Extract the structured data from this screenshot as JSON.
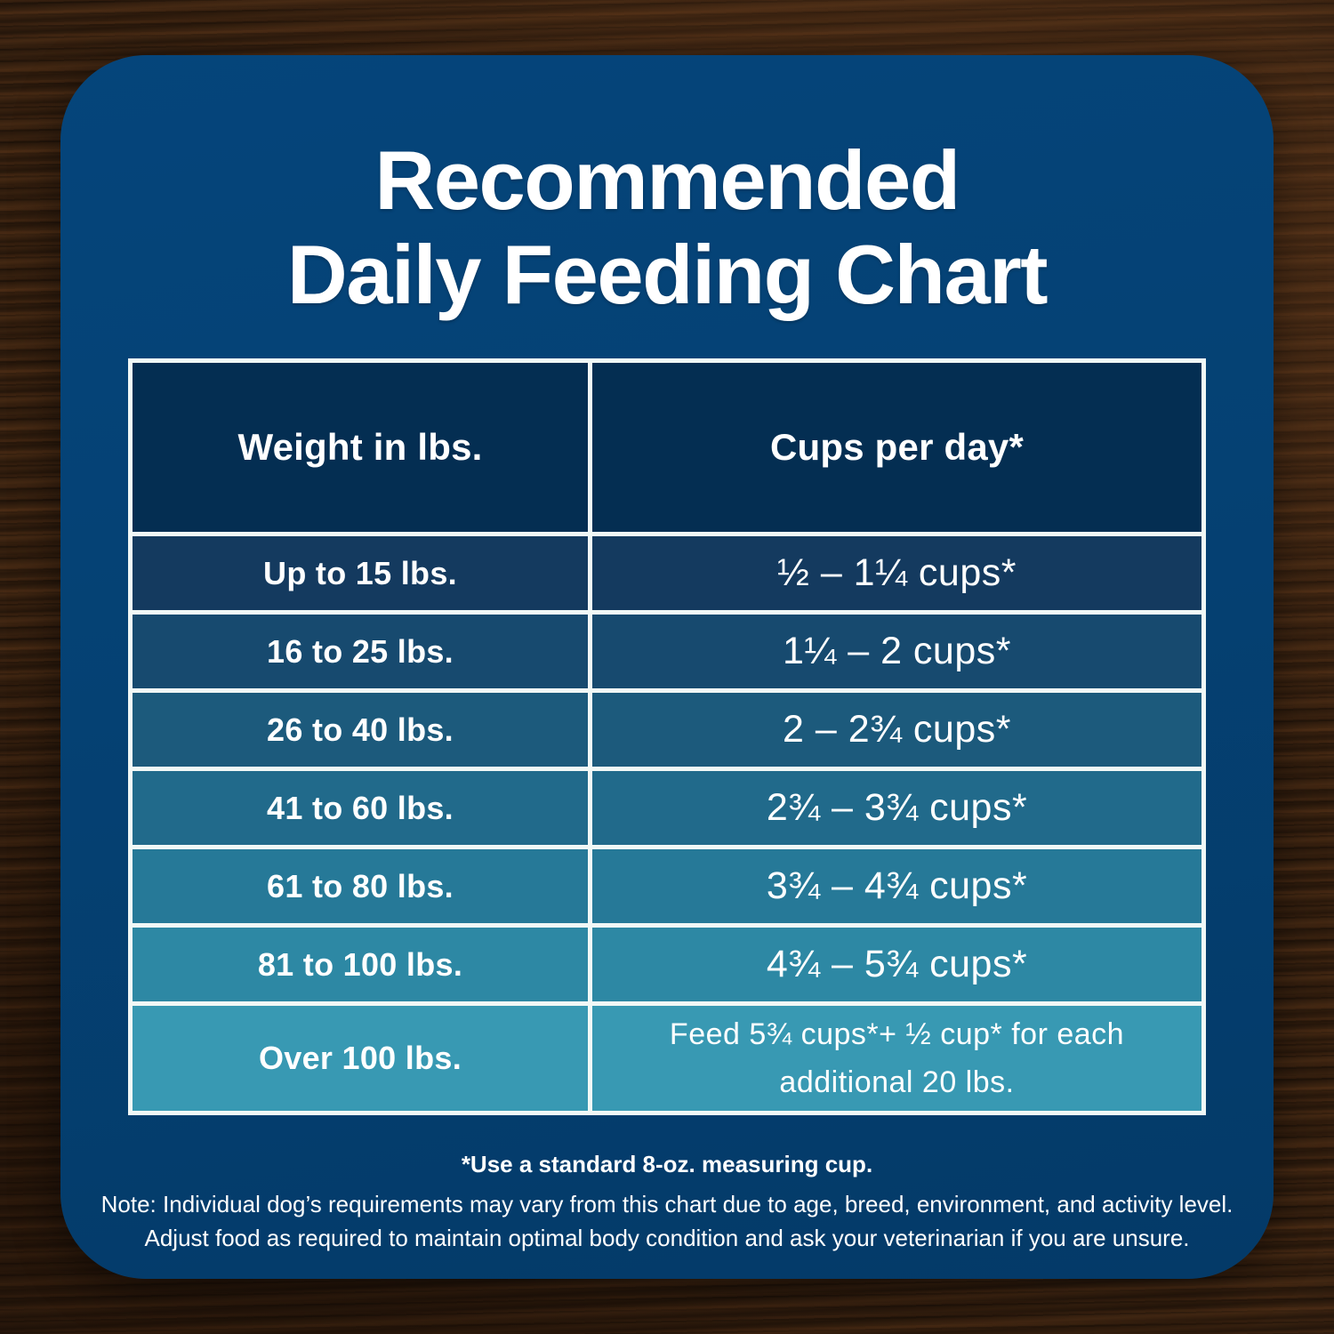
{
  "title": {
    "line1": "Recommended",
    "line2": "Daily Feeding Chart"
  },
  "table": {
    "header_bg": "#042e52",
    "border_color": "#f1f8f6",
    "headers": [
      "Weight in lbs.",
      "Cups per day*"
    ],
    "rows": [
      {
        "weight": "Up to 15 lbs.",
        "cups": "½ – 1¼ cups*",
        "bg": "#143a5f"
      },
      {
        "weight": "16 to 25 lbs.",
        "cups": "1¼ –  2 cups*",
        "bg": "#174a6f"
      },
      {
        "weight": "26 to 40 lbs.",
        "cups": "2 – 2¾ cups*",
        "bg": "#1c5a7c"
      },
      {
        "weight": "41 to 60 lbs.",
        "cups": "2¾ – 3¾ cups*",
        "bg": "#216a8b"
      },
      {
        "weight": "61 to 80 lbs.",
        "cups": "3¾ – 4¾ cups*",
        "bg": "#267998"
      },
      {
        "weight": "81 to 100 lbs.",
        "cups": "4¾ – 5¾ cups*",
        "bg": "#2d88a4"
      },
      {
        "weight": "Over 100 lbs.",
        "cups": "Feed 5¾ cups*+ ½ cup* for each additional 20 lbs.",
        "bg": "#3899b3"
      }
    ]
  },
  "footnotes": {
    "measuring_cup": "*Use a standard 8-oz. measuring cup.",
    "note_line1": "Note: Individual dog’s requirements may vary from this chart due to age, breed, environment, and activity level.",
    "note_line2": "Adjust food as required to maintain optimal body condition and ask your veterinarian if you are unsure."
  },
  "colors": {
    "card_background": "#054173",
    "wood_background": "#36200f",
    "text": "#ffffff"
  },
  "chart_data": {
    "type": "table",
    "title": "Recommended Daily Feeding Chart",
    "columns": [
      "Weight in lbs.",
      "Cups per day*"
    ],
    "rows": [
      [
        "Up to 15 lbs.",
        "½ – 1¼ cups*"
      ],
      [
        "16 to 25 lbs.",
        "1¼ – 2 cups*"
      ],
      [
        "26 to 40 lbs.",
        "2 – 2¾ cups*"
      ],
      [
        "41 to 60 lbs.",
        "2¾ – 3¾ cups*"
      ],
      [
        "61 to 80 lbs.",
        "3¾ – 4¾ cups*"
      ],
      [
        "81 to 100 lbs.",
        "4¾ – 5¾ cups*"
      ],
      [
        "Over 100 lbs.",
        "Feed 5¾ cups*+ ½ cup* for each additional 20 lbs."
      ]
    ],
    "footnotes": [
      "*Use a standard 8-oz. measuring cup.",
      "Note: Individual dog’s requirements may vary from this chart due to age, breed, environment, and activity level.",
      "Adjust food as required to maintain optimal body condition and ask your veterinarian if you are unsure."
    ],
    "layout_hints": {
      "row_background_gradient": [
        "#143a5f",
        "#3899b3"
      ],
      "header_background": "#042e52",
      "grid": "white cell borders"
    }
  }
}
